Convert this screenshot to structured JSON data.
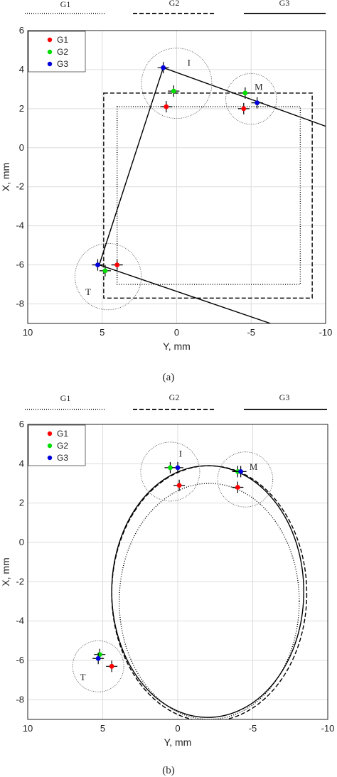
{
  "header_legends": [
    {
      "label": "G1",
      "style": "dotted"
    },
    {
      "label": "G2",
      "style": "dashed"
    },
    {
      "label": "G3",
      "style": "solid"
    }
  ],
  "colors": {
    "G1": "#ff0000",
    "G2": "#00dd00",
    "G3": "#0000dd",
    "line": "#000000",
    "grid": "#dddddd"
  },
  "chart_data": [
    {
      "type": "line",
      "panel": "(a)",
      "xlabel": "Y, mm",
      "ylabel": "X, mm",
      "xlim": [
        10,
        -10
      ],
      "ylim": [
        -9,
        6
      ],
      "xticks": [
        "10",
        "5",
        "0",
        "-5",
        "-10"
      ],
      "yticks": [
        "6",
        "4",
        "2",
        "0",
        "-2",
        "-4",
        "-6",
        "-8"
      ],
      "legend": {
        "placement": "top-left",
        "entries": [
          "G1",
          "G2",
          "G3"
        ]
      },
      "markers": [
        {
          "series": "G1",
          "y": 0.7,
          "x": 2.1
        },
        {
          "series": "G1",
          "y": -4.5,
          "x": 2.0
        },
        {
          "series": "G1",
          "y": 4.0,
          "x": -6.0
        },
        {
          "series": "G2",
          "y": 0.2,
          "x": 2.9
        },
        {
          "series": "G2",
          "y": -4.6,
          "x": 2.8
        },
        {
          "series": "G2",
          "y": 4.8,
          "x": -6.3
        },
        {
          "series": "G3",
          "y": 0.9,
          "x": 4.1
        },
        {
          "series": "G3",
          "y": -5.4,
          "x": 2.3
        },
        {
          "series": "G3",
          "y": 5.3,
          "x": -6.0
        }
      ],
      "circles": [
        {
          "label": "I",
          "y": 0.0,
          "x": 3.3,
          "r": 1.8
        },
        {
          "label": "M",
          "y": -5.0,
          "x": 2.5,
          "r": 1.3
        },
        {
          "label": "T",
          "y": 4.6,
          "x": -6.6,
          "r": 1.7
        }
      ],
      "shapes": [
        {
          "series": "G3",
          "kind": "lines",
          "segments": [
            [
              [
                5.2,
                -6.0
              ],
              [
                0.9,
                4.1
              ],
              [
                -10.0,
                1.1
              ]
            ],
            [
              [
                5.2,
                -6.0
              ],
              [
                -6.3,
                -9.0
              ]
            ]
          ]
        },
        {
          "series": "G2",
          "kind": "rect",
          "y1": 4.9,
          "y2": -9.1,
          "x1": -7.7,
          "x2": 2.8
        },
        {
          "series": "G1",
          "kind": "rect",
          "y1": 4.0,
          "y2": -8.3,
          "x1": -7.0,
          "x2": 2.1
        }
      ]
    },
    {
      "type": "line",
      "panel": "(b)",
      "xlabel": "Y, mm",
      "ylabel": "X, mm",
      "xlim": [
        10,
        -10
      ],
      "ylim": [
        -9,
        6
      ],
      "xticks": [
        "10",
        "5",
        "0",
        "-5",
        "-10"
      ],
      "yticks": [
        "6",
        "4",
        "2",
        "0",
        "-2",
        "-4",
        "-6",
        "-8"
      ],
      "legend": {
        "placement": "top-left",
        "entries": [
          "G1",
          "G2",
          "G3"
        ]
      },
      "markers": [
        {
          "series": "G1",
          "y": -0.1,
          "x": 2.9
        },
        {
          "series": "G1",
          "y": -4.0,
          "x": 2.8
        },
        {
          "series": "G1",
          "y": 4.4,
          "x": -6.3
        },
        {
          "series": "G2",
          "y": 0.5,
          "x": 3.8
        },
        {
          "series": "G2",
          "y": -4.0,
          "x": 3.6
        },
        {
          "series": "G2",
          "y": 5.2,
          "x": -5.7
        },
        {
          "series": "G3",
          "y": 0.0,
          "x": 3.8
        },
        {
          "series": "G3",
          "y": -4.2,
          "x": 3.6
        },
        {
          "series": "G3",
          "y": 5.3,
          "x": -5.9
        }
      ],
      "circles": [
        {
          "label": "I",
          "y": 0.5,
          "x": 3.6,
          "r": 1.5
        },
        {
          "label": "M",
          "y": -4.5,
          "x": 3.2,
          "r": 1.4
        },
        {
          "label": "T",
          "y": 5.3,
          "x": -6.3,
          "r": 1.3
        }
      ],
      "shapes": [
        {
          "series": "G3",
          "kind": "circle",
          "cy": -2.0,
          "cx": -2.5,
          "r": 6.4
        },
        {
          "series": "G2",
          "kind": "circle",
          "cy": -2.1,
          "cx": -2.6,
          "r": 6.5
        },
        {
          "series": "G1",
          "kind": "circle",
          "cy": -2.1,
          "cx": -3.0,
          "r": 6.0
        }
      ]
    }
  ],
  "captions": [
    "(a)",
    "(b)"
  ]
}
